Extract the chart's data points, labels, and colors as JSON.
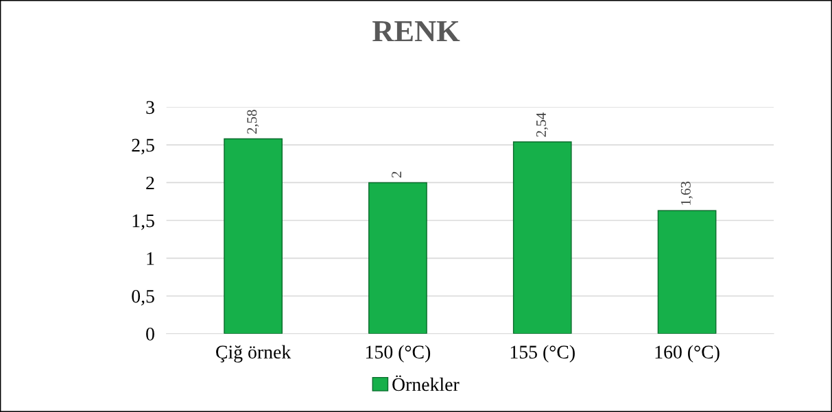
{
  "chart_data": {
    "type": "bar",
    "title": "RENK",
    "categories": [
      "Çiğ örnek",
      "150 (°C)",
      "155 (°C)",
      "160 (°C)"
    ],
    "series": [
      {
        "name": "Örnekler",
        "color": "#16b04a",
        "values": [
          2.58,
          2,
          2.54,
          1.63
        ],
        "value_labels": [
          "2,58",
          "2",
          "2,54",
          "1,63"
        ]
      }
    ],
    "ylim": [
      0,
      3
    ],
    "yticks": [
      0,
      {
        "value": 0.5,
        "label": "0,5"
      },
      1,
      {
        "value": 1.5,
        "label": "1,5"
      },
      2,
      {
        "value": 2.5,
        "label": "2,5"
      },
      3
    ],
    "grid": "y",
    "legend": "bottom"
  }
}
